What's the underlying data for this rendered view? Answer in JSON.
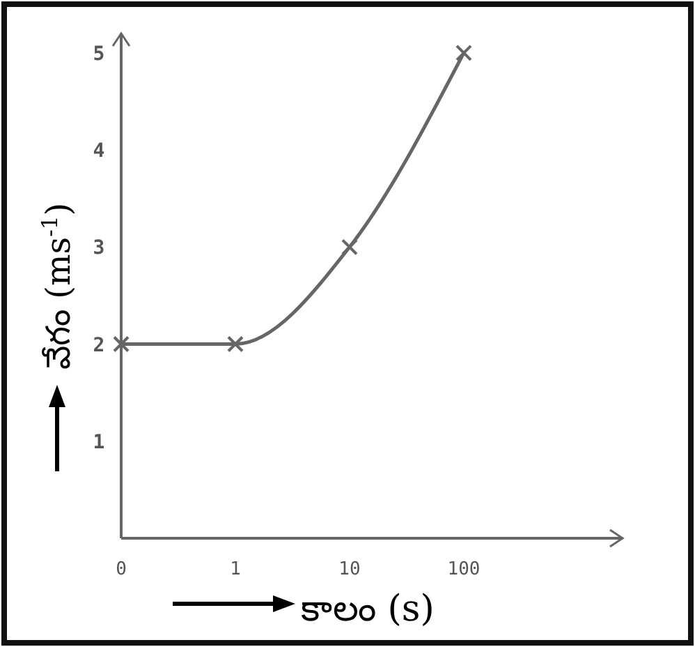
{
  "chart_data": {
    "type": "line",
    "xlabel": "కాలం (s)",
    "ylabel": "వేగం (ms$^{-1}$)",
    "categories": [
      "0",
      "1",
      "10",
      "100"
    ],
    "series": [
      {
        "color": "#666666",
        "values": [
          2,
          2,
          3,
          5
        ]
      }
    ],
    "ylim": [
      0,
      5.2
    ],
    "yticks": [
      1,
      2,
      3,
      4,
      5
    ],
    "marker": "cross",
    "line_style": "solid",
    "grid": false
  }
}
